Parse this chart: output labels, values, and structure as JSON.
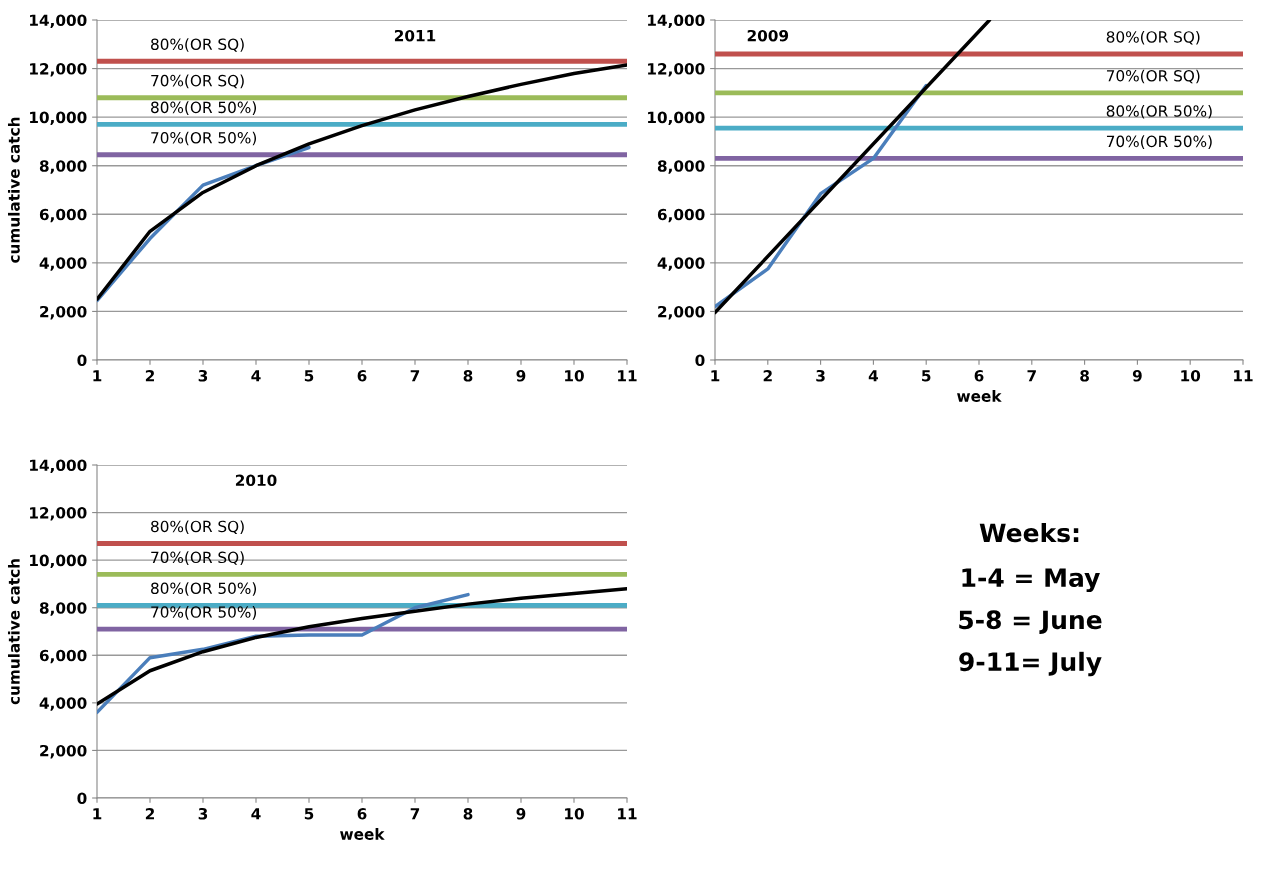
{
  "chart_data": [
    {
      "type": "line",
      "title": "2011",
      "ylabel": "cumulative catch",
      "xlim": [
        1,
        11
      ],
      "xticks": [
        1,
        2,
        3,
        4,
        5,
        6,
        7,
        8,
        9,
        10,
        11
      ],
      "ylim": [
        0,
        14000
      ],
      "yticks": [
        0,
        {
          "value": 2000,
          "label": "2,000"
        },
        {
          "value": 4000,
          "label": "4,000"
        },
        {
          "value": 6000,
          "label": "6,000"
        },
        {
          "value": 8000,
          "label": "8,000"
        },
        {
          "value": 10000,
          "label": "10,000"
        },
        {
          "value": 12000,
          "label": "12,000"
        },
        {
          "value": 14000,
          "label": "14,000"
        }
      ],
      "grid": "y",
      "legend": false,
      "series": [
        {
          "color": "#4a7ebb",
          "x": [
            1,
            2,
            3,
            4,
            5
          ],
          "values": [
            2450,
            5000,
            7200,
            8000,
            8750
          ]
        },
        {
          "color": "#000000",
          "x": [
            1,
            2,
            3,
            4,
            5,
            6,
            7,
            8,
            9,
            10,
            11
          ],
          "values": [
            2500,
            5300,
            6900,
            8000,
            8900,
            9650,
            10300,
            10850,
            11350,
            11800,
            12150
          ]
        }
      ],
      "ref_lines": [
        {
          "axis": "y",
          "value": 12300,
          "label": "80%(OR SQ)",
          "color": "#c0504d"
        },
        {
          "axis": "y",
          "value": 10800,
          "label": "70%(OR SQ)",
          "color": "#9bbb59"
        },
        {
          "axis": "y",
          "value": 9700,
          "label": "80%(OR 50%)",
          "color": "#4bacc6"
        },
        {
          "axis": "y",
          "value": 8450,
          "label": "70%(OR 50%)",
          "color": "#8064a2"
        }
      ]
    },
    {
      "type": "line",
      "title": "2009",
      "xlabel": "week",
      "xlim": [
        1,
        11
      ],
      "xticks": [
        1,
        2,
        3,
        4,
        5,
        6,
        7,
        8,
        9,
        10,
        11
      ],
      "ylim": [
        0,
        14000
      ],
      "yticks": [
        0,
        {
          "value": 2000,
          "label": "2,000"
        },
        {
          "value": 4000,
          "label": "4,000"
        },
        {
          "value": 6000,
          "label": "6,000"
        },
        {
          "value": 8000,
          "label": "8,000"
        },
        {
          "value": 10000,
          "label": "10,000"
        },
        {
          "value": 12000,
          "label": "12,000"
        },
        {
          "value": 14000,
          "label": "14,000"
        }
      ],
      "grid": "y",
      "legend": false,
      "series": [
        {
          "color": "#4a7ebb",
          "x": [
            1,
            2,
            3,
            4,
            5
          ],
          "values": [
            2200,
            3750,
            6850,
            8300,
            11300
          ]
        },
        {
          "color": "#000000",
          "x": [
            1,
            6.2
          ],
          "values": [
            1950,
            14000
          ]
        }
      ],
      "ref_lines": [
        {
          "axis": "y",
          "value": 12600,
          "label": "80%(OR SQ)",
          "color": "#c0504d"
        },
        {
          "axis": "y",
          "value": 11000,
          "label": "70%(OR SQ)",
          "color": "#9bbb59"
        },
        {
          "axis": "y",
          "value": 9550,
          "label": "80%(OR 50%)",
          "color": "#4bacc6"
        },
        {
          "axis": "y",
          "value": 8300,
          "label": "70%(OR 50%)",
          "color": "#8064a2"
        }
      ]
    },
    {
      "type": "line",
      "title": "2010",
      "xlabel": "week",
      "ylabel": "cumulative catch",
      "xlim": [
        1,
        11
      ],
      "xticks": [
        1,
        2,
        3,
        4,
        5,
        6,
        7,
        8,
        9,
        10,
        11
      ],
      "ylim": [
        0,
        14000
      ],
      "yticks": [
        0,
        {
          "value": 2000,
          "label": "2,000"
        },
        {
          "value": 4000,
          "label": "4,000"
        },
        {
          "value": 6000,
          "label": "6,000"
        },
        {
          "value": 8000,
          "label": "8,000"
        },
        {
          "value": 10000,
          "label": "10,000"
        },
        {
          "value": 12000,
          "label": "12,000"
        },
        {
          "value": 14000,
          "label": "14,000"
        }
      ],
      "grid": "y",
      "legend": false,
      "series": [
        {
          "color": "#4a7ebb",
          "x": [
            1,
            2,
            3,
            4,
            5,
            6,
            7,
            8
          ],
          "values": [
            3600,
            5900,
            6250,
            6800,
            6850,
            6850,
            8000,
            8550
          ]
        },
        {
          "color": "#000000",
          "x": [
            1,
            2,
            3,
            4,
            5,
            6,
            7,
            8,
            9,
            10,
            11
          ],
          "values": [
            3950,
            5350,
            6150,
            6750,
            7200,
            7550,
            7850,
            8150,
            8400,
            8600,
            8800
          ]
        }
      ],
      "ref_lines": [
        {
          "axis": "y",
          "value": 10700,
          "label": "80%(OR SQ)",
          "color": "#c0504d"
        },
        {
          "axis": "y",
          "value": 9400,
          "label": "70%(OR SQ)",
          "color": "#9bbb59"
        },
        {
          "axis": "y",
          "value": 8100,
          "label": "80%(OR 50%)",
          "color": "#4bacc6"
        },
        {
          "axis": "y",
          "value": 7100,
          "label": "70%(OR 50%)",
          "color": "#8064a2"
        }
      ]
    },
    {
      "type": "other",
      "annotations": [
        "Weeks:",
        "1-4 = May",
        "5-8 = June",
        "9-11= July"
      ]
    }
  ]
}
